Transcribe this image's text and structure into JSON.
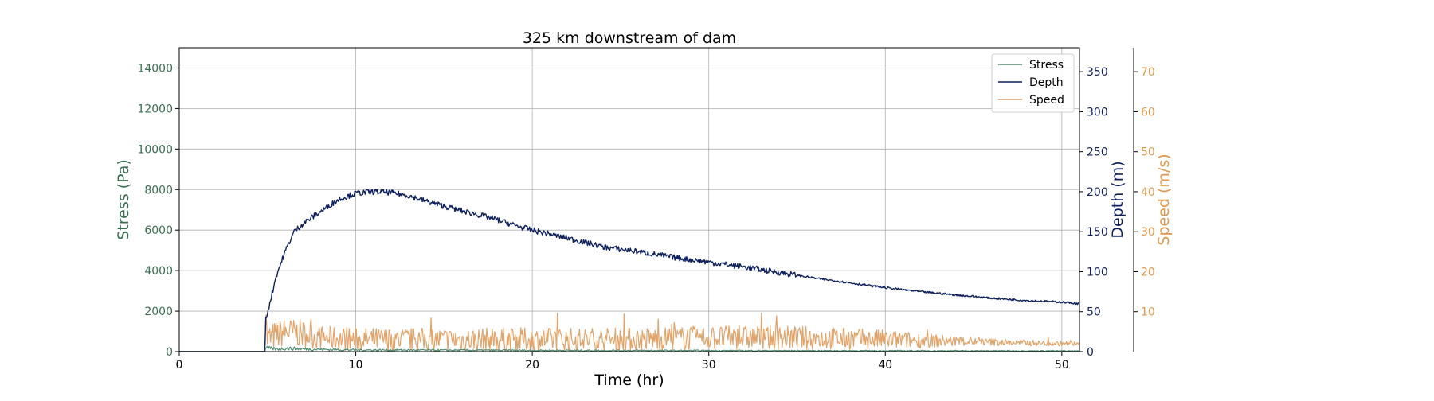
{
  "chart_data": {
    "type": "line",
    "title": "325 km downstream of dam",
    "xlabel": "Time (hr)",
    "xlim": [
      0,
      51
    ],
    "xticks": [
      0,
      10,
      20,
      30,
      40,
      50
    ],
    "grid": true,
    "legend": {
      "placement": "top-right",
      "entries": [
        "Stress",
        "Depth",
        "Speed"
      ]
    },
    "axes": {
      "stress": {
        "label": "Stress (Pa)",
        "ylim": [
          0,
          15000
        ],
        "ticks": [
          0,
          2000,
          4000,
          6000,
          8000,
          10000,
          12000,
          14000
        ],
        "color": "#3a7050"
      },
      "depth": {
        "label": "Depth (m)",
        "ylim": [
          0,
          380
        ],
        "ticks": [
          0,
          50,
          100,
          150,
          200,
          250,
          300,
          350
        ],
        "color": "#0d1f5c"
      },
      "speed": {
        "label": "Speed (m/s)",
        "ylim": [
          0,
          76
        ],
        "ticks": [
          10,
          20,
          30,
          40,
          50,
          60,
          70
        ],
        "color": "#e0974b"
      }
    },
    "series": [
      {
        "name": "Stress",
        "axis": "stress",
        "color": "#4d8a6e",
        "x": [
          0,
          4.85,
          4.9,
          5.5,
          6,
          8,
          10,
          15,
          20,
          25,
          30,
          35,
          40,
          45,
          50,
          51
        ],
        "y": [
          0,
          0,
          180,
          120,
          160,
          110,
          80,
          70,
          60,
          55,
          50,
          45,
          40,
          40,
          35,
          35
        ]
      },
      {
        "name": "Depth",
        "axis": "depth",
        "color": "#0d1f5c",
        "x": [
          0,
          4.85,
          4.9,
          5.5,
          6,
          6.5,
          7,
          8,
          9,
          10,
          11,
          12,
          13,
          14,
          15,
          16,
          17,
          18,
          19,
          20,
          22,
          24,
          26,
          28,
          30,
          32,
          34,
          36,
          38,
          40,
          42,
          44,
          46,
          48,
          50,
          51
        ],
        "y": [
          0,
          0,
          40,
          95,
          125,
          150,
          160,
          175,
          190,
          198,
          200,
          199,
          195,
          188,
          182,
          176,
          171,
          165,
          158,
          152,
          142,
          131,
          125,
          118,
          112,
          106,
          99,
          92,
          86,
          80,
          75,
          71,
          67,
          64,
          62,
          60
        ]
      },
      {
        "name": "Speed",
        "axis": "speed",
        "color": "#e0a46a",
        "x": [
          0,
          4.85,
          4.9,
          5,
          6,
          7,
          8,
          10,
          15,
          20,
          25,
          30,
          35,
          40,
          45,
          50,
          51
        ],
        "y": [
          0,
          0,
          9.5,
          3,
          5,
          4.5,
          3.5,
          3,
          3,
          3,
          3,
          3.5,
          3.5,
          3,
          2.5,
          2,
          2
        ],
        "noise": [
          0,
          0,
          0,
          4,
          3.5,
          3.5,
          3,
          3,
          3,
          3,
          3,
          3,
          3,
          2.5,
          1,
          0.6,
          0.6
        ]
      }
    ]
  }
}
